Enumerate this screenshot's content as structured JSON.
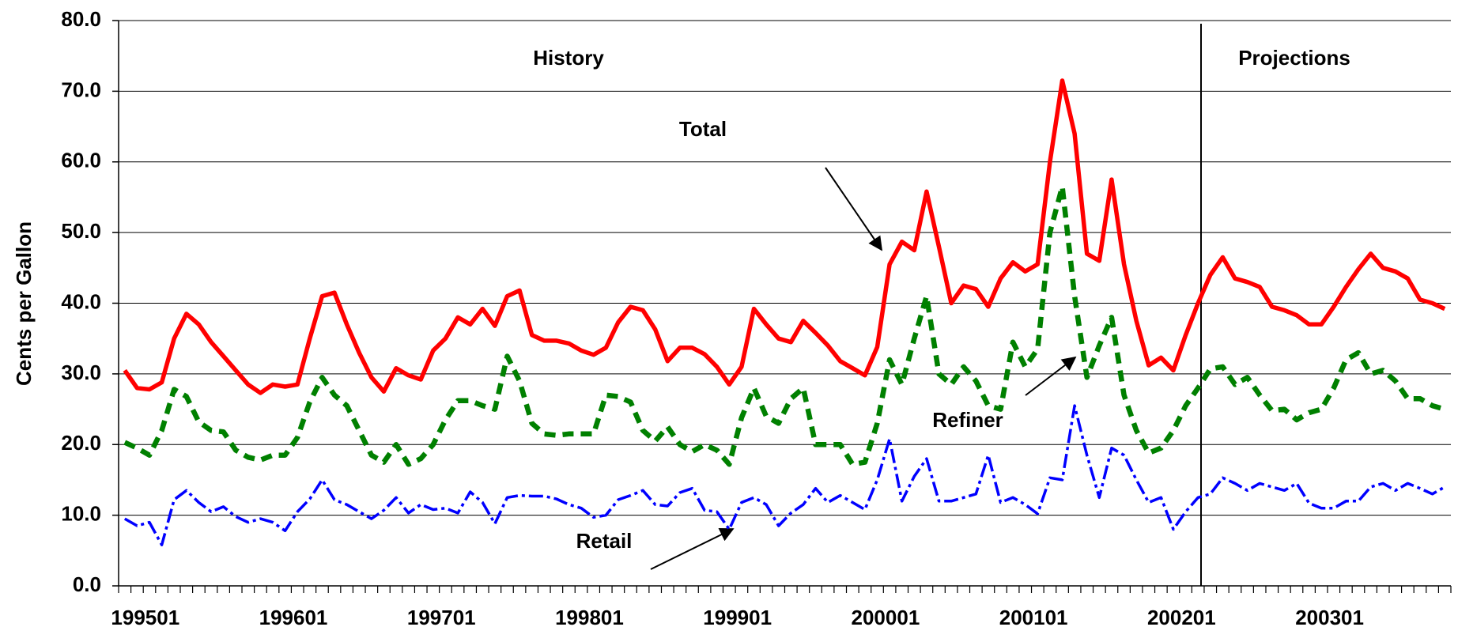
{
  "chart_data": {
    "type": "line",
    "y_label": "Cents per Gallon",
    "annotations": [
      "History",
      "Projections"
    ],
    "grid": true,
    "ylim": [
      0,
      80
    ],
    "yticks": [
      {
        "value": 0,
        "label": "0.0"
      },
      {
        "value": 10,
        "label": "10.0"
      },
      {
        "value": 20,
        "label": "20.0"
      },
      {
        "value": 30,
        "label": "30.0"
      },
      {
        "value": 40,
        "label": "40.0"
      },
      {
        "value": 50,
        "label": "50.0"
      },
      {
        "value": 60,
        "label": "60.0"
      },
      {
        "value": 70,
        "label": "70.0"
      },
      {
        "value": 80,
        "label": "80.0"
      }
    ],
    "categories": [
      "199501",
      null,
      null,
      null,
      null,
      null,
      null,
      null,
      null,
      null,
      null,
      null,
      "199601",
      null,
      null,
      null,
      null,
      null,
      null,
      null,
      null,
      null,
      null,
      null,
      "199701",
      null,
      null,
      null,
      null,
      null,
      null,
      null,
      null,
      null,
      null,
      null,
      "199801",
      null,
      null,
      null,
      null,
      null,
      null,
      null,
      null,
      null,
      null,
      null,
      "199901",
      null,
      null,
      null,
      null,
      null,
      null,
      null,
      null,
      null,
      null,
      null,
      "200001",
      null,
      null,
      null,
      null,
      null,
      null,
      null,
      null,
      null,
      null,
      null,
      "200101",
      null,
      null,
      null,
      null,
      null,
      null,
      null,
      null,
      null,
      null,
      null,
      "200201",
      null,
      null,
      null,
      null,
      null,
      null,
      null,
      null,
      null,
      null,
      null,
      "200301",
      null,
      null,
      null,
      null,
      null,
      null,
      null,
      null,
      null,
      null,
      null
    ],
    "series": [
      {
        "name": "Total",
        "color": "#ff0000",
        "line_style": "solid",
        "values": [
          30.5,
          28,
          27.8,
          28.8,
          35,
          38.5,
          37,
          34.5,
          32.5,
          30.5,
          28.5,
          27.3,
          28.5,
          28.2,
          28.5,
          35,
          41,
          41.5,
          37,
          33,
          29.5,
          27.5,
          30.8,
          29.8,
          29.2,
          33.3,
          35,
          38,
          37,
          39.2,
          36.8,
          41,
          41.8,
          35.5,
          34.7,
          34.7,
          34.3,
          33.3,
          32.7,
          33.7,
          37.3,
          39.5,
          39,
          36.3,
          31.8,
          33.7,
          33.7,
          32.8,
          31,
          28.5,
          31,
          39.2,
          37,
          35,
          34.5,
          37.5,
          35.8,
          34,
          31.8,
          30.8,
          29.8,
          33.8,
          45.5,
          48.7,
          47.5,
          55.8,
          48,
          40,
          42.5,
          42,
          39.5,
          43.5,
          45.8,
          44.5,
          45.5,
          60,
          71.5,
          64,
          47,
          46,
          57.5,
          45.5,
          37.5,
          31.2,
          32.3,
          30.5,
          35.5,
          40,
          44,
          46.5,
          43.5,
          43,
          42.3,
          39.5,
          39,
          38.3,
          37,
          37,
          39.5,
          42.3,
          44.8,
          47,
          45,
          44.5,
          43.5,
          40.5,
          40,
          39.2
        ]
      },
      {
        "name": "Refiner",
        "color": "#008000",
        "line_style": "dashed",
        "values": [
          20.3,
          19.5,
          18.5,
          22,
          27.8,
          26.8,
          23.2,
          22,
          21.8,
          19.2,
          18.2,
          17.8,
          18.5,
          18.5,
          21,
          26,
          29.5,
          27,
          25.5,
          22,
          18.5,
          17.5,
          20,
          17.2,
          18,
          20,
          23.5,
          26.2,
          26.2,
          25.5,
          25,
          32.5,
          29,
          23,
          21.5,
          21.3,
          21.5,
          21.5,
          21.5,
          27,
          26.8,
          26,
          22,
          20.5,
          22.5,
          20,
          19,
          20,
          19.2,
          17.2,
          23.8,
          28,
          24,
          23,
          26.5,
          28,
          20,
          20,
          20,
          17.2,
          17.5,
          23,
          32,
          28.5,
          35,
          41,
          30,
          28.5,
          31,
          29,
          25.5,
          25,
          34.5,
          31,
          33.5,
          50,
          56.5,
          41,
          29.5,
          34,
          38,
          27,
          22,
          18.8,
          19.5,
          22,
          25.5,
          28,
          30.7,
          31,
          28.5,
          29.5,
          27,
          24.8,
          25,
          23.5,
          24.5,
          25,
          28,
          32,
          33,
          30,
          30.5,
          29,
          26.5,
          26.5,
          25.5,
          25
        ]
      },
      {
        "name": "Retail",
        "color": "#0000ff",
        "line_style": "dashdot",
        "values": [
          9.5,
          8.5,
          9,
          5.8,
          12.2,
          13.5,
          11.8,
          10.5,
          11.2,
          9.8,
          9,
          9.5,
          9,
          7.8,
          10.5,
          12.3,
          15,
          12.2,
          11.5,
          10.5,
          9.5,
          10.7,
          12.5,
          10.3,
          11.5,
          10.8,
          11,
          10.3,
          13.3,
          11.8,
          8.8,
          12.5,
          12.8,
          12.7,
          12.7,
          12.3,
          11.5,
          11,
          9.7,
          10,
          12.2,
          12.8,
          13.5,
          11.5,
          11.3,
          13.2,
          13.8,
          10.7,
          10.5,
          8,
          11.8,
          12.5,
          11.5,
          8.5,
          10.3,
          11.5,
          13.8,
          11.8,
          12.8,
          11.8,
          10.8,
          15,
          20.8,
          12,
          15.5,
          18,
          12,
          12,
          12.5,
          13,
          18.5,
          11.8,
          12.5,
          11.5,
          10.2,
          15.3,
          15,
          25.5,
          18.5,
          12.5,
          19.5,
          18.5,
          15,
          11.8,
          12.5,
          8,
          10.5,
          12.5,
          13,
          15.3,
          14.5,
          13.5,
          14.5,
          14,
          13.5,
          14.5,
          11.7,
          11,
          11,
          12,
          12,
          14,
          14.5,
          13.5,
          14.5,
          13.8,
          13,
          14
        ]
      }
    ]
  }
}
